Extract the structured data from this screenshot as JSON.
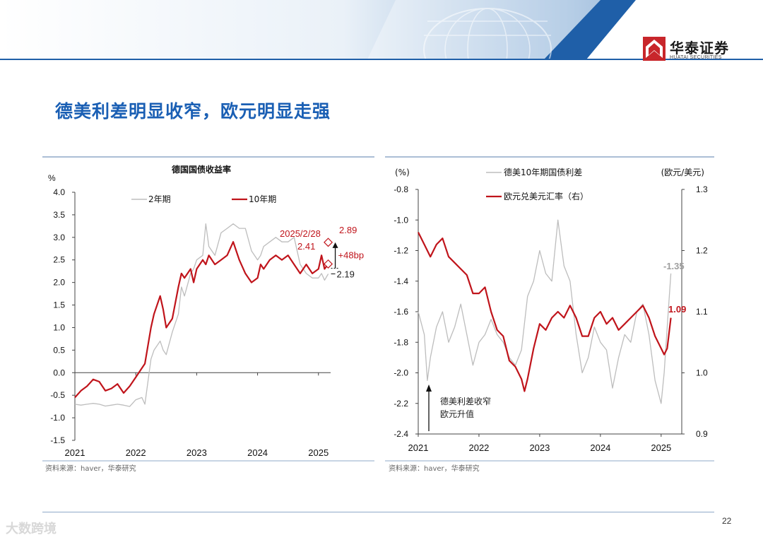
{
  "header": {
    "logo_cn": "华泰证券",
    "logo_en": "HUATAI SECURITIES",
    "colors": {
      "band": "#1f5fa8",
      "dark": "#153f73",
      "logo_red": "#c8262b"
    }
  },
  "slide": {
    "title": "德美利差明显收窄，欧元明显走强",
    "page_number": "22",
    "watermark": "大数跨境"
  },
  "left_chart": {
    "source": "资料来源：haver，华泰研究"
  },
  "right_chart": {
    "source": "资料来源：haver，华泰研究"
  },
  "chart_data": [
    {
      "type": "line",
      "title": "德国国债收益率",
      "ylabel": "%",
      "xlabel": "",
      "ylim": [
        -1.5,
        4.0
      ],
      "yticks": [
        "4.0",
        "3.5",
        "3.0",
        "2.5",
        "2.0",
        "1.5",
        "1.0",
        "0.5",
        "0.0",
        "-0.5",
        "-1.0",
        "-1.5"
      ],
      "xlim": [
        2021.0,
        2025.2
      ],
      "xticks": [
        "2021",
        "2022",
        "2023",
        "2024",
        "2025"
      ],
      "grid": false,
      "legend": "top",
      "series": [
        {
          "name": "2年期",
          "color": "#bdbdbd",
          "x": [
            2021.0,
            2021.1,
            2021.2,
            2021.3,
            2021.4,
            2021.5,
            2021.6,
            2021.7,
            2021.8,
            2021.9,
            2022.0,
            2022.1,
            2022.15,
            2022.2,
            2022.25,
            2022.3,
            2022.4,
            2022.45,
            2022.5,
            2022.6,
            2022.7,
            2022.75,
            2022.8,
            2022.9,
            2022.95,
            2023.0,
            2023.1,
            2023.15,
            2023.2,
            2023.3,
            2023.4,
            2023.5,
            2023.6,
            2023.65,
            2023.7,
            2023.8,
            2023.9,
            2024.0,
            2024.05,
            2024.1,
            2024.2,
            2024.3,
            2024.4,
            2024.5,
            2024.6,
            2024.7,
            2024.8,
            2024.9,
            2025.0,
            2025.05,
            2025.1,
            2025.16
          ],
          "values": [
            -0.7,
            -0.72,
            -0.7,
            -0.68,
            -0.7,
            -0.74,
            -0.72,
            -0.7,
            -0.72,
            -0.75,
            -0.6,
            -0.55,
            -0.7,
            -0.2,
            0.3,
            0.5,
            0.7,
            0.5,
            0.4,
            0.9,
            1.3,
            1.9,
            1.7,
            2.2,
            2.3,
            2.5,
            2.6,
            3.3,
            2.8,
            2.6,
            3.1,
            3.2,
            3.3,
            3.25,
            3.2,
            3.2,
            2.7,
            2.5,
            2.6,
            2.8,
            2.9,
            3.0,
            2.9,
            2.9,
            3.0,
            2.4,
            2.2,
            2.1,
            2.1,
            2.2,
            2.05,
            2.19
          ]
        },
        {
          "name": "10年期",
          "color": "#c0141b",
          "x": [
            2021.0,
            2021.1,
            2021.2,
            2021.3,
            2021.4,
            2021.5,
            2021.6,
            2021.7,
            2021.8,
            2021.9,
            2022.0,
            2022.1,
            2022.15,
            2022.2,
            2022.25,
            2022.3,
            2022.4,
            2022.45,
            2022.5,
            2022.6,
            2022.7,
            2022.75,
            2022.8,
            2022.9,
            2022.95,
            2023.0,
            2023.1,
            2023.15,
            2023.2,
            2023.3,
            2023.4,
            2023.5,
            2023.6,
            2023.65,
            2023.7,
            2023.8,
            2023.9,
            2024.0,
            2024.05,
            2024.1,
            2024.2,
            2024.3,
            2024.4,
            2024.5,
            2024.6,
            2024.7,
            2024.8,
            2024.9,
            2025.0,
            2025.05,
            2025.1,
            2025.16
          ],
          "values": [
            -0.55,
            -0.4,
            -0.3,
            -0.15,
            -0.2,
            -0.4,
            -0.35,
            -0.25,
            -0.45,
            -0.3,
            -0.1,
            0.1,
            0.2,
            0.6,
            1.0,
            1.3,
            1.7,
            1.4,
            1.0,
            1.2,
            1.9,
            2.2,
            2.1,
            2.3,
            2.0,
            2.3,
            2.5,
            2.4,
            2.6,
            2.4,
            2.5,
            2.6,
            2.9,
            2.7,
            2.5,
            2.2,
            2.0,
            2.1,
            2.4,
            2.3,
            2.5,
            2.6,
            2.5,
            2.6,
            2.4,
            2.2,
            2.4,
            2.2,
            2.3,
            2.6,
            2.3,
            2.41
          ]
        }
      ],
      "annotations": [
        {
          "text": "2025/2/28",
          "color": "#c0141b"
        },
        {
          "text": "2.89",
          "color": "#c0141b"
        },
        {
          "text": "2.41",
          "color": "#c0141b"
        },
        {
          "text": "+48bp",
          "color": "#c0141b"
        },
        {
          "text": "2.19",
          "color": "#222222"
        }
      ]
    },
    {
      "type": "line",
      "title": "",
      "ylabel": "(%)",
      "y2label": "(欧元/美元)",
      "xlabel": "",
      "ylim": [
        -2.4,
        -0.8
      ],
      "yticks": [
        "-0.8",
        "-1.0",
        "-1.2",
        "-1.4",
        "-1.6",
        "-1.8",
        "-2.0",
        "-2.2",
        "-2.4"
      ],
      "y2lim": [
        0.9,
        1.3
      ],
      "y2ticks": [
        "1.3",
        "1.2",
        "1.1",
        "1.0",
        "0.9"
      ],
      "xlim": [
        2021.0,
        2025.2
      ],
      "xticks": [
        "2021",
        "2022",
        "2023",
        "2024",
        "2025"
      ],
      "grid": false,
      "legend": "top",
      "series": [
        {
          "name": "德美10年期国债利差",
          "color": "#bdbdbd",
          "axis": "left",
          "x": [
            2021.0,
            2021.1,
            2021.15,
            2021.2,
            2021.3,
            2021.4,
            2021.5,
            2021.6,
            2021.7,
            2021.8,
            2021.9,
            2022.0,
            2022.1,
            2022.2,
            2022.3,
            2022.4,
            2022.5,
            2022.6,
            2022.7,
            2022.8,
            2022.9,
            2023.0,
            2023.1,
            2023.2,
            2023.3,
            2023.35,
            2023.4,
            2023.5,
            2023.6,
            2023.7,
            2023.8,
            2023.9,
            2024.0,
            2024.1,
            2024.2,
            2024.3,
            2024.4,
            2024.5,
            2024.6,
            2024.7,
            2024.8,
            2024.9,
            2025.0,
            2025.05,
            2025.1,
            2025.16
          ],
          "values": [
            -1.6,
            -1.75,
            -2.05,
            -1.9,
            -1.7,
            -1.6,
            -1.8,
            -1.7,
            -1.55,
            -1.75,
            -1.95,
            -1.8,
            -1.75,
            -1.65,
            -1.75,
            -1.8,
            -1.9,
            -1.95,
            -1.85,
            -1.5,
            -1.4,
            -1.2,
            -1.35,
            -1.4,
            -1.0,
            -1.15,
            -1.3,
            -1.4,
            -1.75,
            -2.0,
            -1.9,
            -1.7,
            -1.8,
            -1.85,
            -2.1,
            -1.9,
            -1.75,
            -1.8,
            -1.6,
            -1.55,
            -1.75,
            -2.05,
            -2.2,
            -2.0,
            -1.7,
            -1.35
          ]
        },
        {
          "name": "欧元兑美元汇率（右）",
          "color": "#c0141b",
          "axis": "right",
          "x": [
            2021.0,
            2021.1,
            2021.2,
            2021.3,
            2021.4,
            2021.5,
            2021.6,
            2021.7,
            2021.8,
            2021.9,
            2022.0,
            2022.1,
            2022.2,
            2022.3,
            2022.4,
            2022.5,
            2022.6,
            2022.7,
            2022.75,
            2022.8,
            2022.9,
            2023.0,
            2023.1,
            2023.2,
            2023.3,
            2023.4,
            2023.5,
            2023.6,
            2023.7,
            2023.8,
            2023.9,
            2024.0,
            2024.1,
            2024.2,
            2024.3,
            2024.4,
            2024.5,
            2024.6,
            2024.7,
            2024.8,
            2024.9,
            2025.0,
            2025.05,
            2025.1,
            2025.16
          ],
          "values": [
            1.23,
            1.21,
            1.19,
            1.21,
            1.22,
            1.19,
            1.18,
            1.17,
            1.16,
            1.13,
            1.13,
            1.14,
            1.1,
            1.07,
            1.06,
            1.02,
            1.01,
            0.99,
            0.97,
            0.99,
            1.04,
            1.08,
            1.07,
            1.09,
            1.1,
            1.09,
            1.11,
            1.09,
            1.06,
            1.06,
            1.09,
            1.1,
            1.08,
            1.09,
            1.07,
            1.08,
            1.09,
            1.1,
            1.11,
            1.09,
            1.06,
            1.04,
            1.03,
            1.04,
            1.09
          ]
        }
      ],
      "annotations": [
        {
          "text": "-1.35",
          "color": "#9e9e9e"
        },
        {
          "text": "1.09",
          "color": "#c0141b"
        },
        {
          "text": "德美利差收窄",
          "color": "#222222"
        },
        {
          "text": "欧元升值",
          "color": "#222222"
        }
      ]
    }
  ]
}
